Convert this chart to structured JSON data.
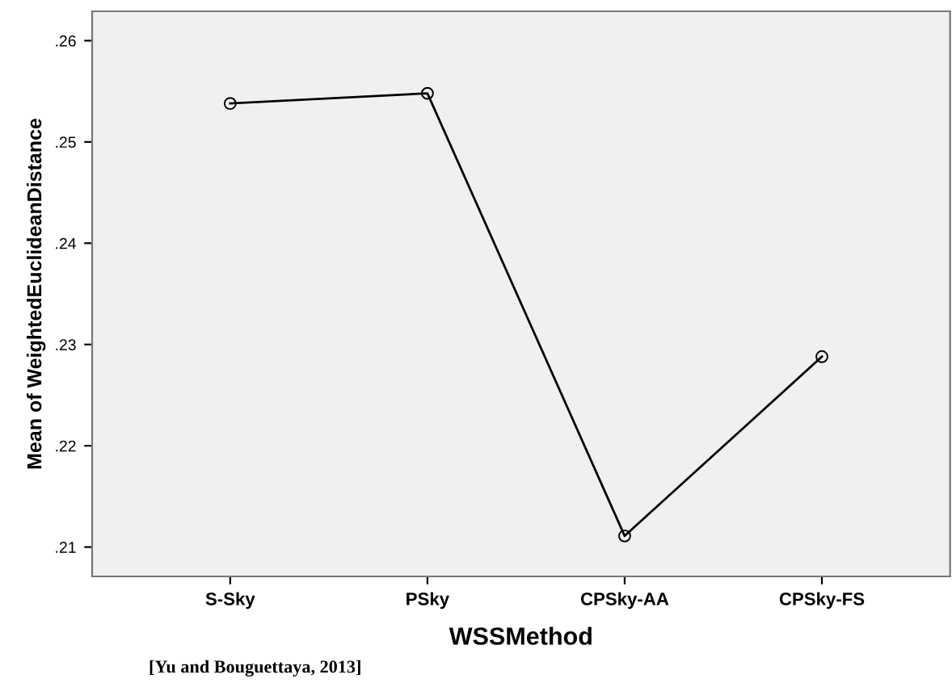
{
  "chart_data": {
    "type": "line",
    "xlabel": "WSSMethod",
    "ylabel": "Mean of WeightedEuclideanDistance",
    "categories": [
      "S-Sky",
      "PSky",
      "CPSky-AA",
      "CPSky-FS"
    ],
    "series": [
      {
        "color": "#000000",
        "values": [
          0.2538,
          0.2548,
          0.2111,
          0.2288
        ]
      }
    ],
    "ylim": [
      0.2071,
      0.2629
    ],
    "yticks": [
      {
        "value": 0.21,
        "label": ".21"
      },
      {
        "value": 0.22,
        "label": ".22"
      },
      {
        "value": 0.23,
        "label": ".23"
      },
      {
        "value": 0.24,
        "label": ".24"
      },
      {
        "value": 0.25,
        "label": ".25"
      },
      {
        "value": 0.26,
        "label": ".26"
      }
    ],
    "marker": "circle",
    "line_style": "solid",
    "grid": false,
    "legend": false,
    "annotations": [
      "[Yu and Bouguettaya, 2013]"
    ]
  }
}
